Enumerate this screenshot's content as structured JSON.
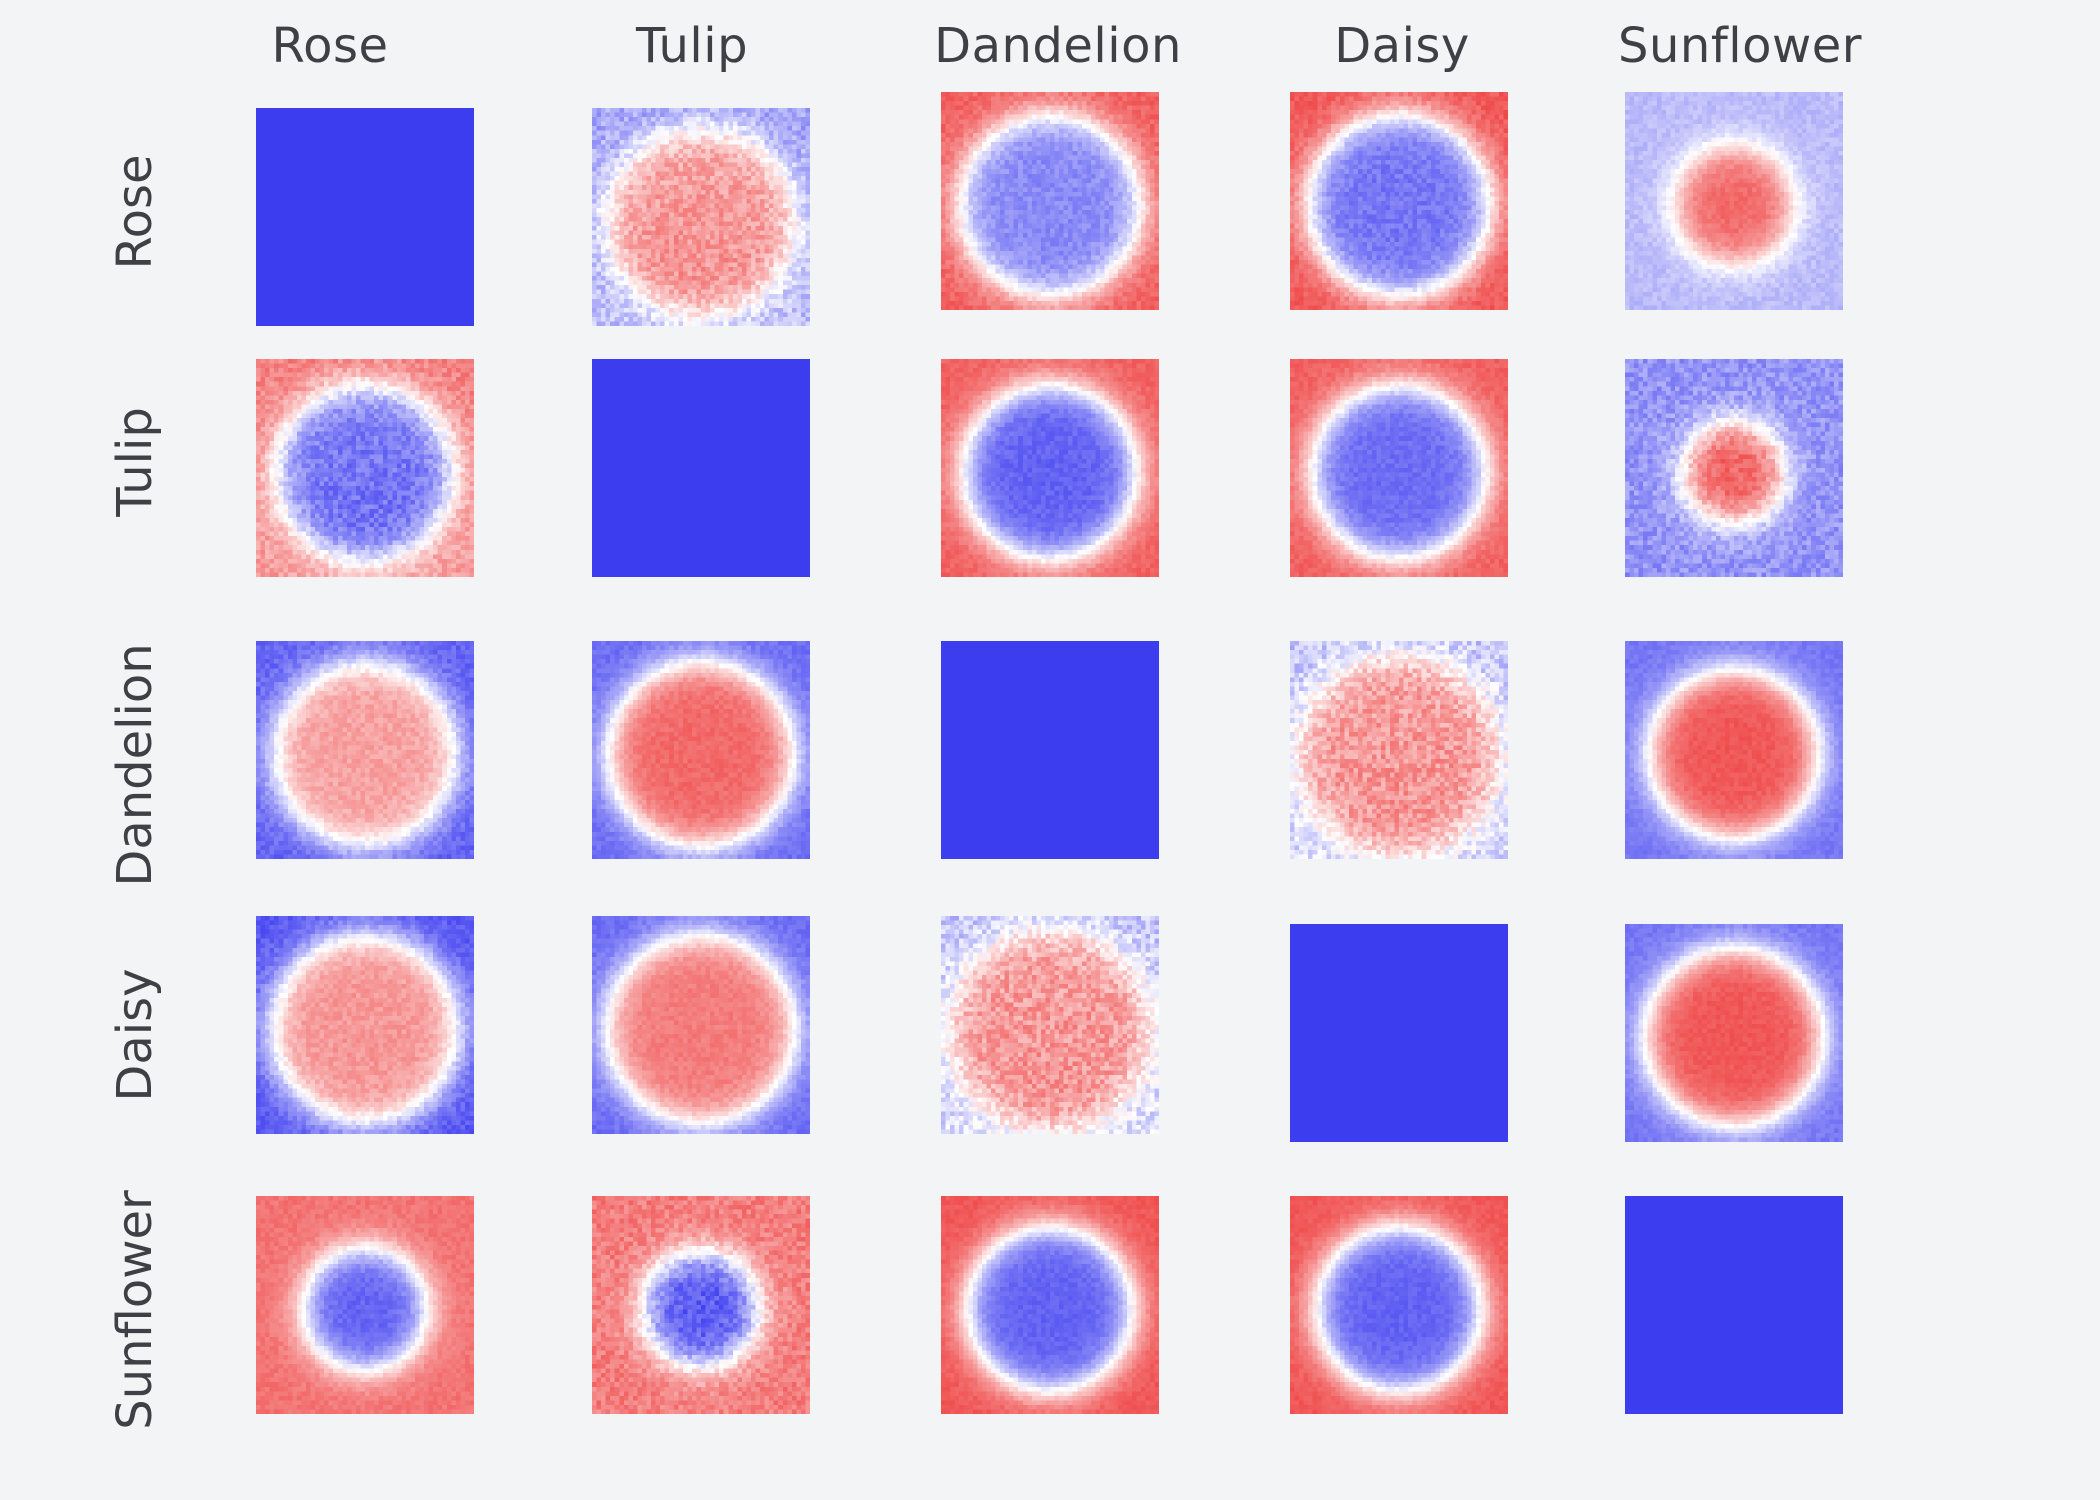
{
  "chart_data": {
    "type": "heatmap",
    "title": "",
    "colormap": {
      "low": "#3c3cf0",
      "mid": "#ffffff",
      "high": "#ef4444",
      "diagonal": "#3d3df0"
    },
    "columns": [
      "Rose",
      "Tulip",
      "Dandelion",
      "Daisy",
      "Sunflower"
    ],
    "rows": [
      "Rose",
      "Tulip",
      "Dandelion",
      "Daisy",
      "Sunflower"
    ],
    "cells": [
      [
        {
          "fill": "solid"
        },
        {
          "center": 0.55,
          "edge": -0.4,
          "radius": 0.42,
          "noise": 0.35,
          "bias": 0.15
        },
        {
          "center": -0.6,
          "edge": 0.85,
          "radius": 0.42,
          "noise": 0.2,
          "bias": 0
        },
        {
          "center": -0.7,
          "edge": 0.9,
          "radius": 0.42,
          "noise": 0.2,
          "bias": 0
        },
        {
          "center": 0.8,
          "edge": -0.35,
          "radius": 0.26,
          "noise": 0.15,
          "bias": 0
        }
      ],
      [
        {
          "center": -0.7,
          "edge": 0.6,
          "radius": 0.4,
          "noise": 0.3,
          "bias": -0.15
        },
        {
          "fill": "solid"
        },
        {
          "center": -0.8,
          "edge": 0.85,
          "radius": 0.4,
          "noise": 0.15,
          "bias": 0
        },
        {
          "center": -0.75,
          "edge": 0.85,
          "radius": 0.4,
          "noise": 0.15,
          "bias": 0
        },
        {
          "center": 0.85,
          "edge": -0.55,
          "radius": 0.22,
          "noise": 0.3,
          "bias": 0
        }
      ],
      [
        {
          "center": 0.5,
          "edge": -0.8,
          "radius": 0.42,
          "noise": 0.2,
          "bias": 0
        },
        {
          "center": 0.8,
          "edge": -0.75,
          "radius": 0.42,
          "noise": 0.15,
          "bias": 0
        },
        {
          "fill": "solid"
        },
        {
          "center": 0.55,
          "edge": -0.25,
          "radius": 0.45,
          "noise": 0.4,
          "bias": 0.1
        },
        {
          "center": 0.9,
          "edge": -0.7,
          "radius": 0.38,
          "noise": 0.12,
          "bias": 0
        }
      ],
      [
        {
          "center": 0.55,
          "edge": -0.85,
          "radius": 0.43,
          "noise": 0.2,
          "bias": 0
        },
        {
          "center": 0.7,
          "edge": -0.75,
          "radius": 0.43,
          "noise": 0.15,
          "bias": 0
        },
        {
          "center": 0.55,
          "edge": -0.25,
          "radius": 0.45,
          "noise": 0.4,
          "bias": 0.1
        },
        {
          "fill": "solid"
        },
        {
          "center": 0.9,
          "edge": -0.7,
          "radius": 0.4,
          "noise": 0.12,
          "bias": 0
        }
      ],
      [
        {
          "center": -0.8,
          "edge": 0.75,
          "radius": 0.28,
          "noise": 0.15,
          "bias": 0
        },
        {
          "center": -0.85,
          "edge": 0.7,
          "radius": 0.26,
          "noise": 0.3,
          "bias": 0
        },
        {
          "center": -0.8,
          "edge": 0.9,
          "radius": 0.38,
          "noise": 0.12,
          "bias": 0
        },
        {
          "center": -0.8,
          "edge": 0.9,
          "radius": 0.38,
          "noise": 0.12,
          "bias": 0
        },
        {
          "fill": "solid"
        }
      ]
    ]
  }
}
